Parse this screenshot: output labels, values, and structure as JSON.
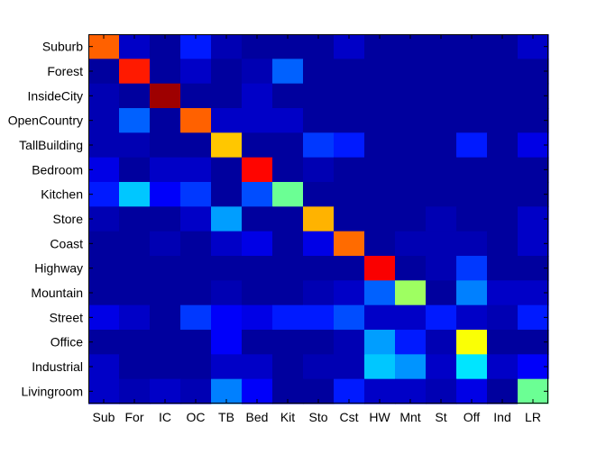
{
  "chart_data": {
    "type": "heatmap",
    "title": "",
    "xlabel": "",
    "ylabel": "",
    "colormap": "jet",
    "value_range": [
      0,
      1
    ],
    "row_labels": [
      "Suburb",
      "Forest",
      "InsideCity",
      "OpenCountry",
      "TallBuilding",
      "Bedroom",
      "Kitchen",
      "Store",
      "Coast",
      "Highway",
      "Mountain",
      "Street",
      "Office",
      "Industrial",
      "Livingroom"
    ],
    "col_labels": [
      "Sub",
      "For",
      "IC",
      "OC",
      "TB",
      "Bed",
      "Kit",
      "Sto",
      "Cst",
      "HW",
      "Mnt",
      "St",
      "Off",
      "Ind",
      "LR"
    ],
    "values": [
      [
        0.78,
        0.07,
        0.03,
        0.15,
        0.05,
        0.03,
        0.03,
        0.03,
        0.07,
        0.03,
        0.03,
        0.03,
        0.03,
        0.03,
        0.07
      ],
      [
        0.03,
        0.85,
        0.03,
        0.07,
        0.03,
        0.05,
        0.22,
        0.03,
        0.03,
        0.03,
        0.03,
        0.03,
        0.03,
        0.03,
        0.03
      ],
      [
        0.05,
        0.03,
        0.97,
        0.03,
        0.03,
        0.07,
        0.03,
        0.03,
        0.03,
        0.03,
        0.03,
        0.03,
        0.03,
        0.03,
        0.03
      ],
      [
        0.05,
        0.22,
        0.03,
        0.78,
        0.07,
        0.07,
        0.07,
        0.03,
        0.03,
        0.03,
        0.03,
        0.03,
        0.03,
        0.03,
        0.03
      ],
      [
        0.05,
        0.05,
        0.03,
        0.03,
        0.68,
        0.03,
        0.03,
        0.18,
        0.15,
        0.03,
        0.03,
        0.03,
        0.15,
        0.03,
        0.1
      ],
      [
        0.1,
        0.03,
        0.07,
        0.07,
        0.03,
        0.87,
        0.03,
        0.05,
        0.03,
        0.03,
        0.03,
        0.03,
        0.03,
        0.03,
        0.03
      ],
      [
        0.15,
        0.32,
        0.12,
        0.18,
        0.03,
        0.2,
        0.48,
        0.03,
        0.03,
        0.03,
        0.03,
        0.03,
        0.03,
        0.03,
        0.03
      ],
      [
        0.05,
        0.03,
        0.03,
        0.07,
        0.28,
        0.03,
        0.03,
        0.7,
        0.03,
        0.03,
        0.03,
        0.05,
        0.03,
        0.03,
        0.07
      ],
      [
        0.03,
        0.03,
        0.05,
        0.03,
        0.07,
        0.1,
        0.03,
        0.1,
        0.77,
        0.03,
        0.05,
        0.05,
        0.05,
        0.03,
        0.07
      ],
      [
        0.03,
        0.03,
        0.03,
        0.03,
        0.03,
        0.03,
        0.03,
        0.03,
        0.03,
        0.88,
        0.03,
        0.05,
        0.18,
        0.03,
        0.03
      ],
      [
        0.03,
        0.03,
        0.03,
        0.03,
        0.05,
        0.03,
        0.03,
        0.05,
        0.07,
        0.22,
        0.53,
        0.03,
        0.25,
        0.07,
        0.07
      ],
      [
        0.1,
        0.07,
        0.03,
        0.18,
        0.12,
        0.1,
        0.15,
        0.15,
        0.2,
        0.07,
        0.07,
        0.15,
        0.07,
        0.05,
        0.15
      ],
      [
        0.03,
        0.03,
        0.03,
        0.03,
        0.12,
        0.03,
        0.03,
        0.03,
        0.05,
        0.28,
        0.15,
        0.05,
        0.62,
        0.03,
        0.03
      ],
      [
        0.07,
        0.03,
        0.03,
        0.03,
        0.07,
        0.07,
        0.03,
        0.05,
        0.05,
        0.32,
        0.27,
        0.07,
        0.35,
        0.07,
        0.12
      ],
      [
        0.07,
        0.05,
        0.07,
        0.05,
        0.25,
        0.12,
        0.03,
        0.03,
        0.15,
        0.07,
        0.07,
        0.05,
        0.1,
        0.03,
        0.48
      ]
    ]
  }
}
